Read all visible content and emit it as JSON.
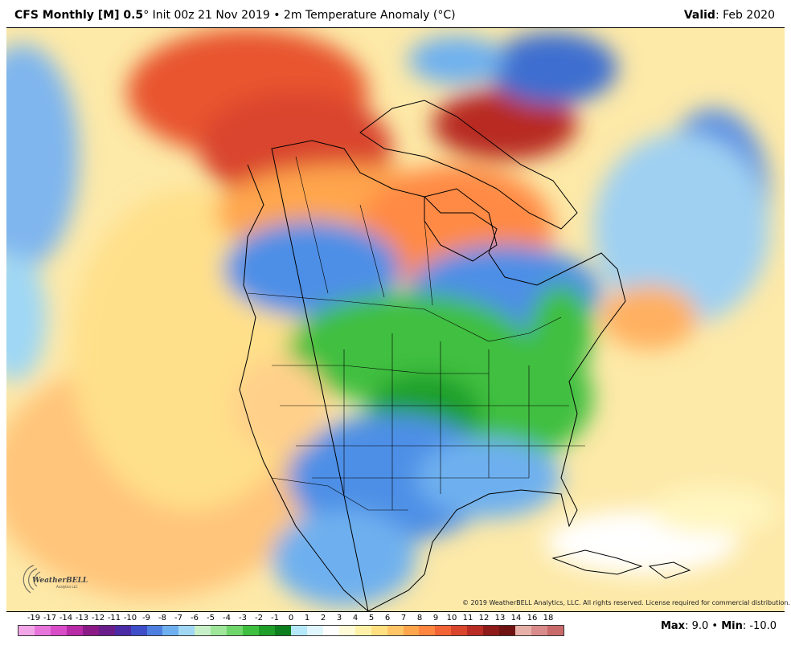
{
  "header": {
    "model": "CFS Monthly [M] 0.5",
    "deg": "°",
    "init": " Init 00z 21 Nov 2019",
    "bullet": " • ",
    "variable": "2m Temperature Anomaly (°C)",
    "valid_label": "Valid",
    "valid_value": ": Feb 2020"
  },
  "copyright": "© 2019 WeatherBELL Analytics, LLC. All rights reserved. License required for commercial distribution.",
  "logo": {
    "name": "WeatherBELL",
    "sub": "Analytics LLC"
  },
  "colorbar": {
    "ticks": [
      "-19",
      "-17",
      "-14",
      "-13",
      "-12",
      "-11",
      "-10",
      "-9",
      "-8",
      "-7",
      "-6",
      "-5",
      "-4",
      "-3",
      "-2",
      "-1",
      "0",
      "1",
      "2",
      "3",
      "4",
      "5",
      "6",
      "7",
      "8",
      "9",
      "10",
      "11",
      "12",
      "13",
      "14",
      "16",
      "18"
    ],
    "colors": [
      "#f2a6e8",
      "#e774db",
      "#d84cc8",
      "#b82aa6",
      "#8c1a86",
      "#6a1d8a",
      "#4b2aa6",
      "#3e4ec8",
      "#4e7fe0",
      "#6eb0ef",
      "#9fd7f5",
      "#c8f0c8",
      "#9de69a",
      "#6fd66c",
      "#3fbf3f",
      "#1f9f2a",
      "#0d7f1e",
      "#b5e8f8",
      "#dff6fc",
      "#ffffff",
      "#fffbd6",
      "#fff2a8",
      "#ffe080",
      "#ffc566",
      "#ffa64d",
      "#ff8640",
      "#f26436",
      "#d9452d",
      "#b82c24",
      "#8e1a1a",
      "#6e1212",
      "#e6b0a8",
      "#d98a8a",
      "#c96a6a"
    ]
  },
  "stats": {
    "max_label": "Max",
    "max_value": ": 9.0",
    "sep": " • ",
    "min_label": "Min",
    "min_value": ": -10.0"
  }
}
